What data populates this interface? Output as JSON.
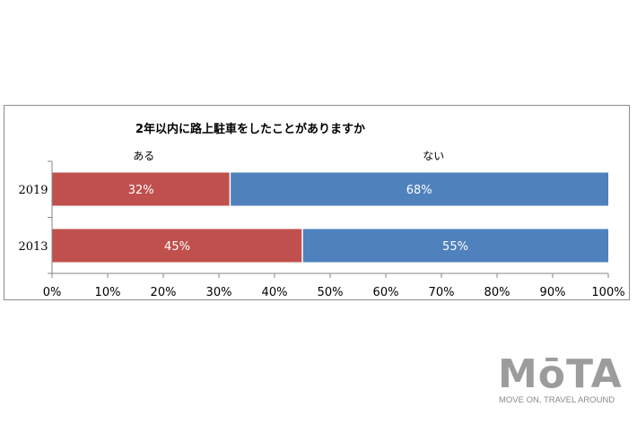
{
  "chart_data": {
    "type": "bar",
    "orientation": "horizontal",
    "stacked": true,
    "title": "2年以内に路上駐車をしたことがありますか",
    "categories": [
      "2019",
      "2013"
    ],
    "series": [
      {
        "name": "ある",
        "values": [
          32,
          45
        ],
        "labels": [
          "32%",
          "45%"
        ],
        "color": "#c0504d"
      },
      {
        "name": "ない",
        "values": [
          68,
          55
        ],
        "labels": [
          "68%",
          "55%"
        ],
        "color": "#4f81bd"
      }
    ],
    "x_ticks": [
      "0%",
      "10%",
      "20%",
      "30%",
      "40%",
      "50%",
      "60%",
      "70%",
      "80%",
      "90%",
      "100%"
    ],
    "xlim": [
      0,
      100
    ],
    "xlabel": "",
    "ylabel": "",
    "grid": false,
    "legend": "top"
  },
  "brand": {
    "logo_text": "MōTA",
    "tagline": "MOVE ON, TRAVEL AROUND",
    "color": "#9c9c9c"
  }
}
